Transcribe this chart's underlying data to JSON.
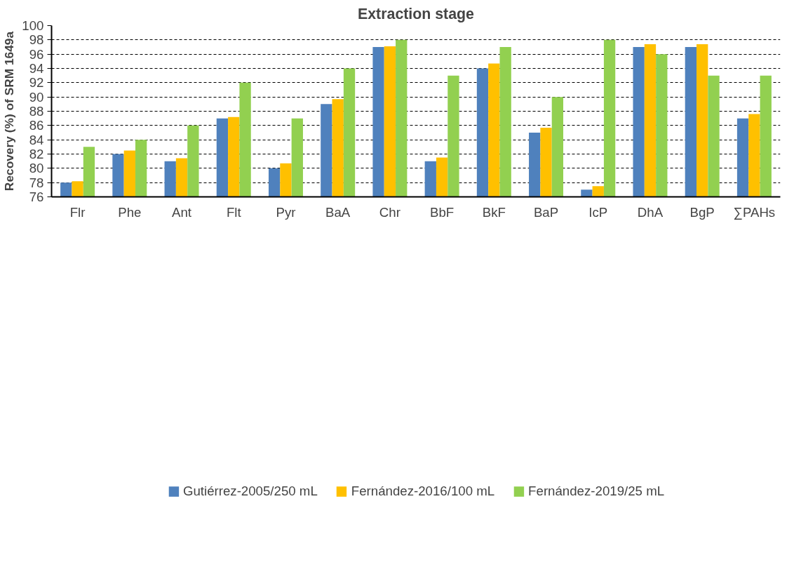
{
  "chart_data": {
    "type": "bar",
    "title": "Extraction stage",
    "ylabel": "Recovery (%) of SRM 1649a",
    "categories": [
      "Flr",
      "Phe",
      "Ant",
      "Flt",
      "Pyr",
      "BaA",
      "Chr",
      "BbF",
      "BkF",
      "BaP",
      "IcP",
      "DhA",
      "BgP",
      "∑PAHs"
    ],
    "series": [
      {
        "name": "Gutiérrez-2005/250 mL",
        "color": "#4f81bd",
        "values": [
          78,
          82,
          81,
          87,
          80,
          89,
          97,
          81,
          94,
          85,
          77,
          97,
          97,
          87
        ]
      },
      {
        "name": "Fernández-2016/100 mL",
        "color": "#ffc000",
        "values": [
          78.2,
          82.5,
          81.4,
          87.2,
          80.7,
          89.7,
          97.1,
          81.5,
          94.7,
          85.7,
          77.5,
          97.4,
          97.4,
          87.6
        ]
      },
      {
        "name": "Fernández-2019/25 mL",
        "color": "#92d050",
        "values": [
          83,
          84,
          86,
          92,
          87,
          94,
          98,
          93,
          97,
          90,
          98,
          96,
          93,
          93
        ]
      }
    ],
    "ylim": [
      76,
      100
    ],
    "yticks": [
      76,
      78,
      80,
      82,
      84,
      86,
      88,
      90,
      92,
      94,
      96,
      98,
      100
    ],
    "grid": "y",
    "legend": "bottom"
  }
}
